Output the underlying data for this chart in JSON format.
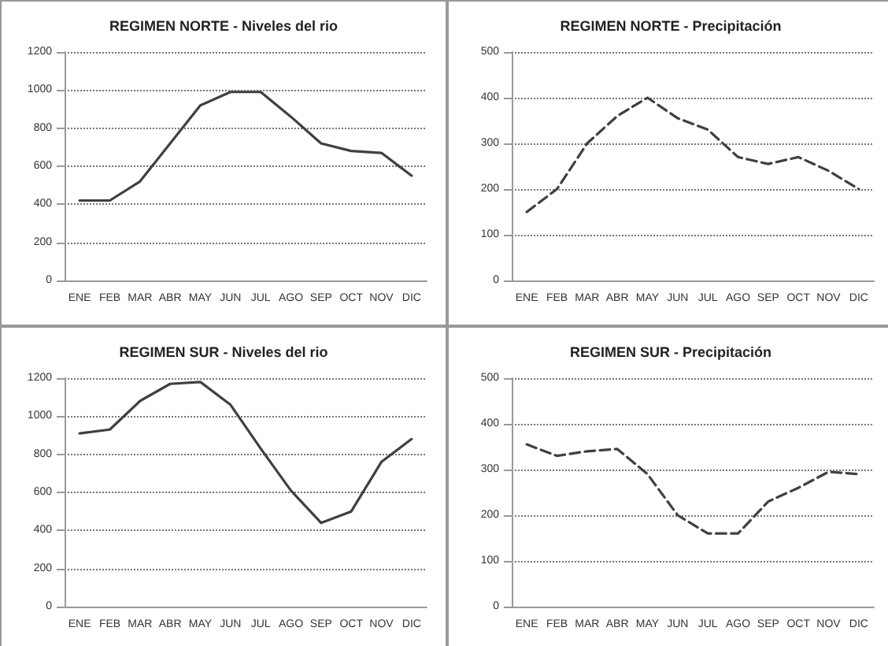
{
  "chart_data": [
    {
      "type": "line",
      "title": "REGIMEN NORTE - Niveles del rio",
      "categories": [
        "ENE",
        "FEB",
        "MAR",
        "ABR",
        "MAY",
        "JUN",
        "JUL",
        "AGO",
        "SEP",
        "OCT",
        "NOV",
        "DIC"
      ],
      "series": [
        {
          "color": "#404040",
          "values": [
            420,
            420,
            520,
            720,
            920,
            990,
            990,
            860,
            720,
            680,
            670,
            550
          ]
        }
      ],
      "ylim": [
        0,
        1200
      ],
      "yticks": [
        0,
        200,
        400,
        600,
        800,
        1000,
        1200
      ],
      "grid": "y",
      "line_style": "solid",
      "marker": "none"
    },
    {
      "type": "line",
      "title": "REGIMEN NORTE - Precipitación",
      "categories": [
        "ENE",
        "FEB",
        "MAR",
        "ABR",
        "MAY",
        "JUN",
        "JUL",
        "AGO",
        "SEP",
        "OCT",
        "NOV",
        "DIC"
      ],
      "series": [
        {
          "color": "#404040",
          "values": [
            150,
            200,
            300,
            360,
            400,
            355,
            330,
            270,
            255,
            270,
            240,
            200
          ]
        }
      ],
      "ylim": [
        0,
        500
      ],
      "yticks": [
        0,
        100,
        200,
        300,
        400,
        500
      ],
      "grid": "y",
      "line_style": "dashed",
      "marker": "none"
    },
    {
      "type": "line",
      "title": "REGIMEN SUR - Niveles del rio",
      "categories": [
        "ENE",
        "FEB",
        "MAR",
        "ABR",
        "MAY",
        "JUN",
        "JUL",
        "AGO",
        "SEP",
        "OCT",
        "NOV",
        "DIC"
      ],
      "series": [
        {
          "color": "#404040",
          "values": [
            910,
            930,
            1080,
            1170,
            1180,
            1060,
            830,
            610,
            440,
            500,
            760,
            880
          ]
        }
      ],
      "ylim": [
        0,
        1200
      ],
      "yticks": [
        0,
        200,
        400,
        600,
        800,
        1000,
        1200
      ],
      "grid": "y",
      "line_style": "solid",
      "marker": "none"
    },
    {
      "type": "line",
      "title": "REGIMEN SUR - Precipitación",
      "categories": [
        "ENE",
        "FEB",
        "MAR",
        "ABR",
        "MAY",
        "JUN",
        "JUL",
        "AGO",
        "SEP",
        "OCT",
        "NOV",
        "DIC"
      ],
      "series": [
        {
          "color": "#404040",
          "values": [
            355,
            330,
            340,
            345,
            290,
            200,
            160,
            160,
            230,
            260,
            295,
            290
          ]
        }
      ],
      "ylim": [
        0,
        500
      ],
      "yticks": [
        0,
        100,
        200,
        300,
        400,
        500
      ],
      "grid": "y",
      "line_style": "dashed",
      "marker": "none"
    }
  ]
}
